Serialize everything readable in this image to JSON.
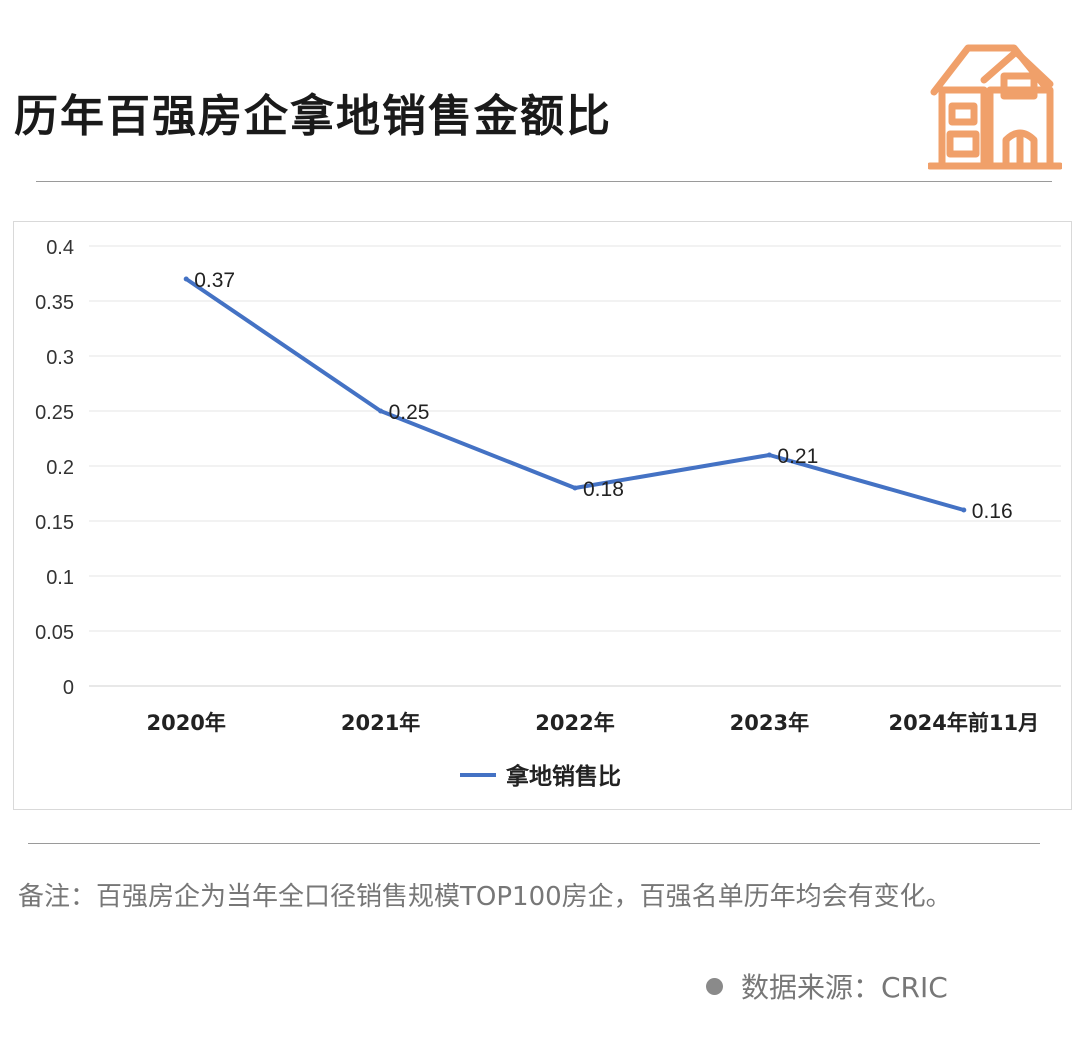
{
  "page": {
    "title": "历年百强房企拿地销售金额比",
    "note": "备注：百强房企为当年全口径销售规模TOP100房企，百强名单历年均会有变化。",
    "source": "数据来源：CRIC",
    "icon": "house-icon",
    "icon_color": "#F0A06A"
  },
  "chart_data": {
    "type": "line",
    "categories": [
      "2020年",
      "2021年",
      "2022年",
      "2023年",
      "2024年前11月"
    ],
    "series": [
      {
        "name": "拿地销售比",
        "values": [
          0.37,
          0.25,
          0.18,
          0.21,
          0.16
        ],
        "color": "#4472C4"
      }
    ],
    "data_labels": [
      "0.37",
      "0.25",
      "0.18",
      "0.21",
      "0.16"
    ],
    "ylim": [
      0,
      0.4
    ],
    "yticks": [
      "0",
      "0.05",
      "0.1",
      "0.15",
      "0.2",
      "0.25",
      "0.3",
      "0.35",
      "0.4"
    ],
    "grid": true,
    "legend": "bottom"
  }
}
